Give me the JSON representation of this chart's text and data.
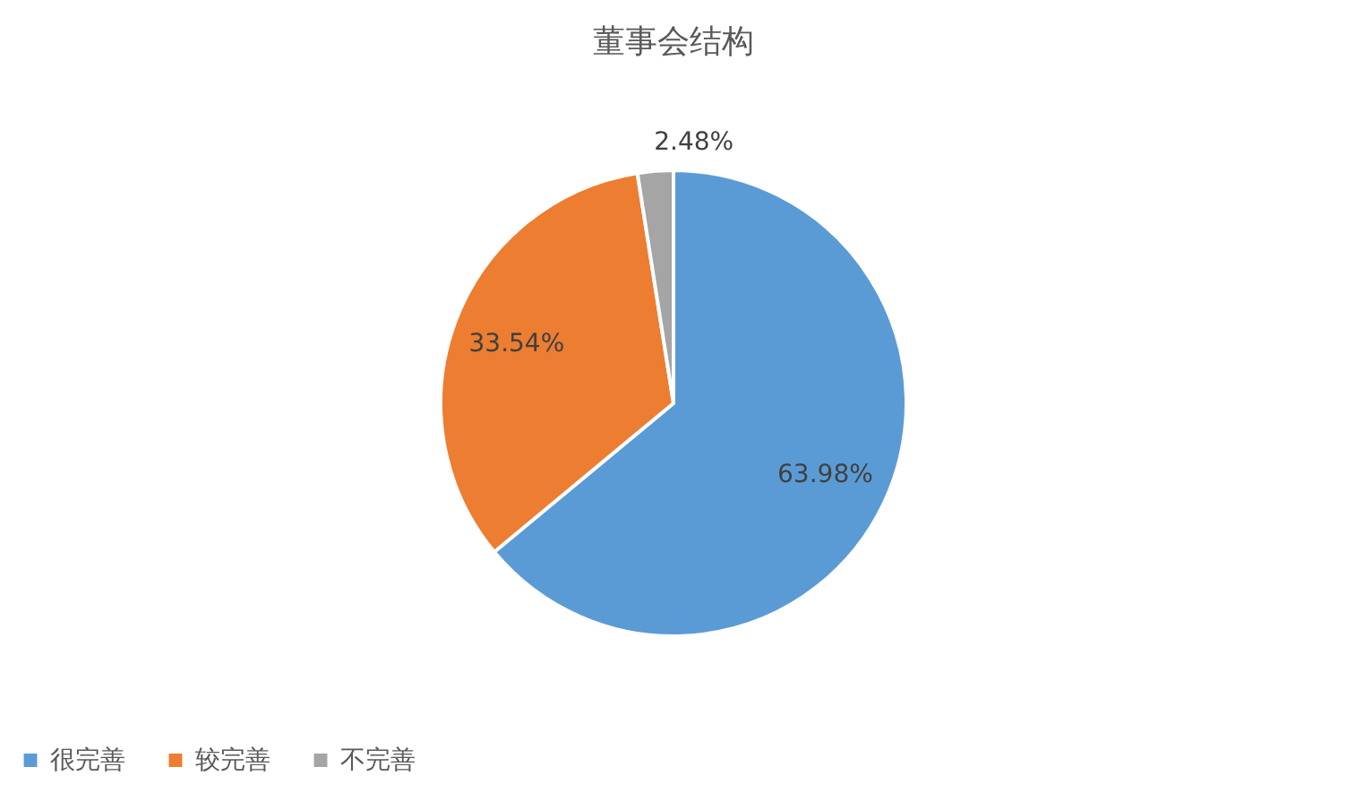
{
  "chart_data": {
    "type": "pie",
    "title": "董事会结构",
    "categories": [
      "很完善",
      "较完善",
      "不完善"
    ],
    "values": [
      63.98,
      33.54,
      2.48
    ],
    "colors": [
      "#5b9bd5",
      "#ed7d31",
      "#a5a5a5"
    ],
    "value_labels": [
      "63.98%",
      "33.54%",
      "2.48%"
    ],
    "legend": "bottom"
  }
}
